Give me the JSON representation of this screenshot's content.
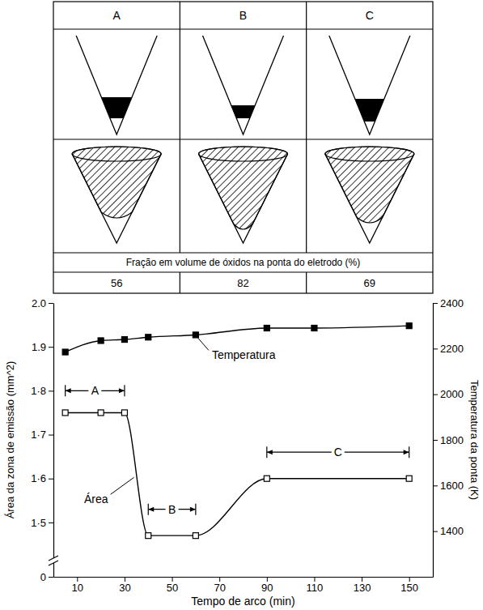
{
  "chart_data": {
    "type": "line",
    "xlabel": "Tempo de arco (min)",
    "ylabel": "Área da zona de emissão (mm^2)",
    "y2label": "Temperatura da ponta (K)",
    "xlim": [
      0,
      160
    ],
    "xticks": [
      10,
      30,
      50,
      70,
      90,
      110,
      130,
      150
    ],
    "ylim": [
      0,
      2.0
    ],
    "yticks": [
      0,
      {
        "value": 1.5,
        "label": "1·5"
      },
      {
        "value": 1.6,
        "label": "1·6"
      },
      {
        "value": 1.7,
        "label": "1·7"
      },
      {
        "value": 1.8,
        "label": "1·8"
      },
      1.9,
      {
        "value": 2,
        "label": "2.0"
      }
    ],
    "y2lim": [
      1200,
      2400
    ],
    "y2ticks": [
      1400,
      1600,
      1800,
      2000,
      2200,
      2400
    ],
    "series": [
      {
        "name": "Temperatura",
        "x": [
          5,
          20,
          30,
          40,
          60,
          90,
          110,
          150
        ],
        "values": [
          2185,
          2235,
          2240,
          2250,
          2260,
          2290,
          2290,
          2300
        ],
        "axis": "y2",
        "marker": "filled-square",
        "color": "#000000"
      },
      {
        "name": "Área",
        "x": [
          5,
          20,
          30,
          40,
          60,
          90,
          150
        ],
        "values": [
          1.75,
          1.75,
          1.75,
          1.47,
          1.47,
          1.6,
          1.6
        ],
        "marker": "open-square",
        "color": "#000000"
      }
    ],
    "annotations": [
      {
        "text": "A",
        "x": [
          5,
          30
        ],
        "y": 1.8
      },
      {
        "text": "B",
        "x": [
          40,
          60
        ],
        "y": 1.53
      },
      {
        "text": "C",
        "x": [
          90,
          150
        ],
        "y": 1.66
      }
    ]
  },
  "panel_table": {
    "columns": [
      "A",
      "B",
      "C"
    ],
    "caption": "Fração em volume de óxidos na ponta do eletrodo (%)",
    "values": [
      56,
      82,
      69
    ]
  }
}
